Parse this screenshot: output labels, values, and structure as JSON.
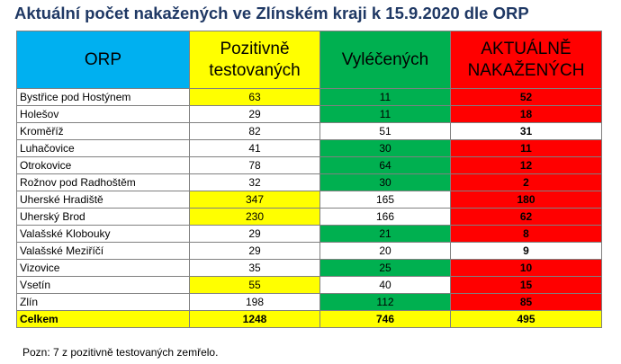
{
  "title": "Aktuální počet nakažených ve Zlínském kraji k 15.9.2020 dle ORP",
  "headers": {
    "orp": "ORP",
    "pozitivne_line1": "Pozitivně",
    "pozitivne_line2": "testovaných",
    "vylecenych": "Vyléčených",
    "aktualne_line1": "AKTUÁLNĚ",
    "aktualne_line2": "NAKAŽENÝCH"
  },
  "header_colors": {
    "orp": "#00b0f0",
    "pozitivne": "#ffff00",
    "vylecenych": "#00b050",
    "aktualne": "#ff0000"
  },
  "rows": [
    {
      "orp": "Bystřice pod Hostýnem",
      "pozitivne": "63",
      "vylecenych": "11",
      "aktualne": "52"
    },
    {
      "orp": "Holešov",
      "pozitivne": "29",
      "vylecenych": "11",
      "aktualne": "18"
    },
    {
      "orp": "Kroměříž",
      "pozitivne": "82",
      "vylecenych": "51",
      "aktualne": "31"
    },
    {
      "orp": "Luhačovice",
      "pozitivne": "41",
      "vylecenych": "30",
      "aktualne": "11"
    },
    {
      "orp": "Otrokovice",
      "pozitivne": "78",
      "vylecenych": "64",
      "aktualne": "12"
    },
    {
      "orp": "Rožnov pod Radhoštěm",
      "pozitivne": "32",
      "vylecenych": "30",
      "aktualne": "2"
    },
    {
      "orp": "Uherské Hradiště",
      "pozitivne": "347",
      "vylecenych": "165",
      "aktualne": "180"
    },
    {
      "orp": "Uherský Brod",
      "pozitivne": "230",
      "vylecenych": "166",
      "aktualne": "62"
    },
    {
      "orp": "Valašské Klobouky",
      "pozitivne": "29",
      "vylecenych": "21",
      "aktualne": "8"
    },
    {
      "orp": "Valašské Meziříčí",
      "pozitivne": "29",
      "vylecenych": "20",
      "aktualne": "9"
    },
    {
      "orp": "Vizovice",
      "pozitivne": "35",
      "vylecenych": "25",
      "aktualne": "10"
    },
    {
      "orp": "Vsetín",
      "pozitivne": "55",
      "vylecenych": "40",
      "aktualne": "15"
    },
    {
      "orp": "Zlín",
      "pozitivne": "198",
      "vylecenych": "112",
      "aktualne": "85"
    }
  ],
  "total": {
    "orp": "Celkem",
    "pozitivne": "1248",
    "vylecenych": "746",
    "aktualne": "495"
  },
  "note": "Pozn: 7 z pozitivně testovaných zemřelo."
}
